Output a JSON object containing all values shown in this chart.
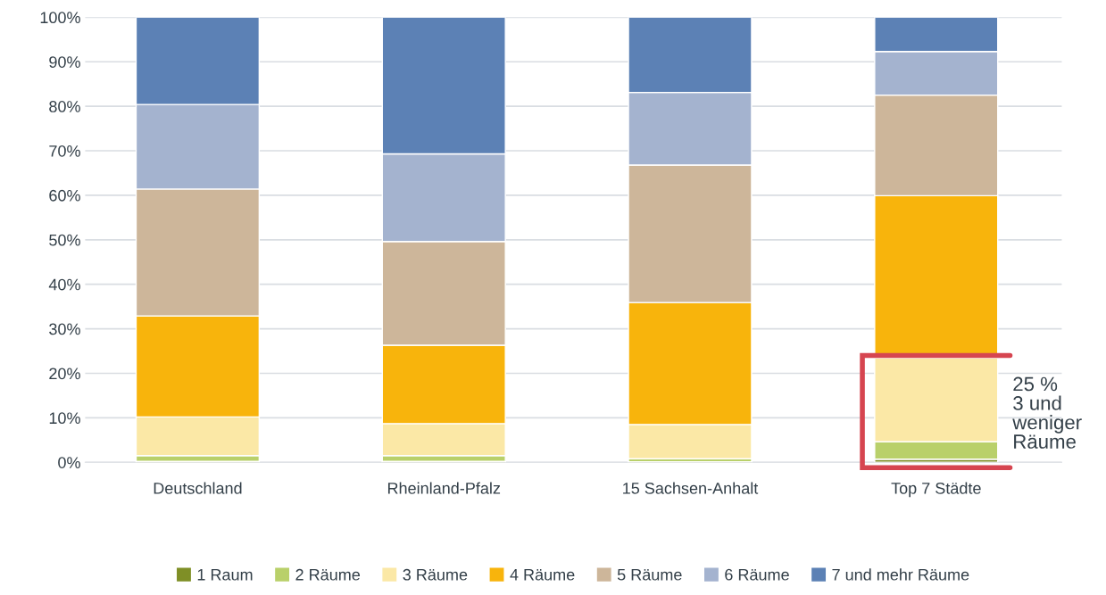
{
  "chart_data": {
    "type": "bar",
    "stacked": true,
    "categories": [
      "Deutschland",
      "Rheinland-Pfalz",
      "15 Sachsen-Anhalt",
      "Top 7 Städte"
    ],
    "series": [
      {
        "name": "1 Raum",
        "color": "#7f8f26",
        "values": [
          0.2,
          0.2,
          0.1,
          0.7
        ]
      },
      {
        "name": "2 Räume",
        "color": "#b9d06a",
        "values": [
          1.3,
          1.3,
          0.7,
          3.9
        ]
      },
      {
        "name": "3 Räume",
        "color": "#fbe8a6",
        "values": [
          8.7,
          7.2,
          7.7,
          18.9
        ]
      },
      {
        "name": "4 Räume",
        "color": "#f8b40c",
        "values": [
          22.7,
          17.6,
          27.4,
          36.4
        ]
      },
      {
        "name": "5 Räume",
        "color": "#cdb69a",
        "values": [
          28.5,
          23.3,
          30.9,
          22.6
        ]
      },
      {
        "name": "6 Räume",
        "color": "#a4b3cf",
        "values": [
          19.0,
          19.7,
          16.3,
          9.8
        ]
      },
      {
        "name": "7 und mehr Räume",
        "color": "#5c81b5",
        "values": [
          19.6,
          30.7,
          16.9,
          7.7
        ]
      }
    ],
    "ylim": [
      0,
      100
    ],
    "yticks": [
      {
        "value": 0,
        "label": "0%"
      },
      {
        "value": 10,
        "label": "10%"
      },
      {
        "value": 20,
        "label": "20%"
      },
      {
        "value": 30,
        "label": "30%"
      },
      {
        "value": 40,
        "label": "40%"
      },
      {
        "value": 50,
        "label": "50%"
      },
      {
        "value": 60,
        "label": "60%"
      },
      {
        "value": 70,
        "label": "70%"
      },
      {
        "value": 80,
        "label": "80%"
      },
      {
        "value": 90,
        "label": "90%"
      },
      {
        "value": 100,
        "label": "100%"
      }
    ],
    "grid": "y",
    "legend": "bottom",
    "annotations": [
      "25 %\n3 und\nweniger\nRäume"
    ]
  }
}
